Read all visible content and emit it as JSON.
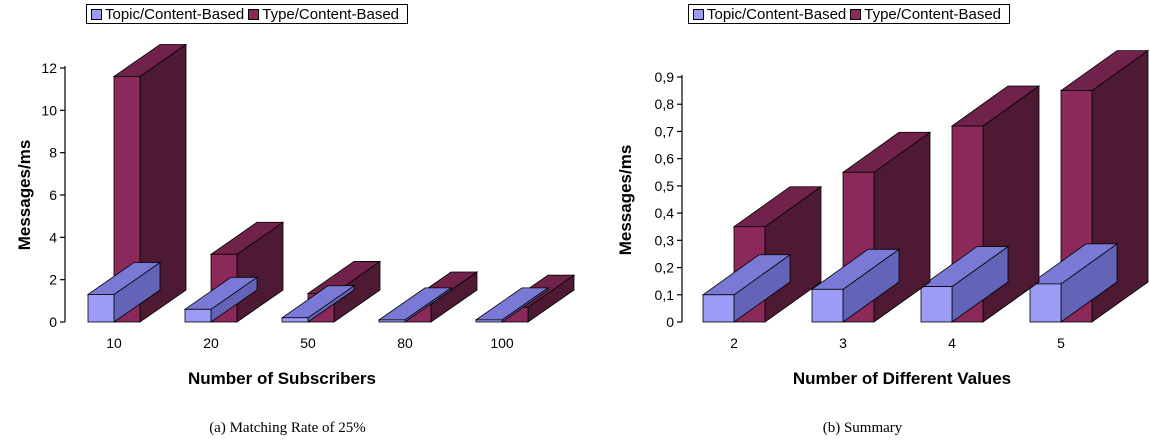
{
  "colors": {
    "series1_front": "#9c9cf6",
    "series1_top": "#7a7ad6",
    "series1_side": "#6363b8",
    "series2_front": "#8b2a5a",
    "series2_top": "#71224a",
    "series2_side": "#4e1a33"
  },
  "chart_data": [
    {
      "type": "bar",
      "categories": [
        "10",
        "20",
        "50",
        "80",
        "100"
      ],
      "series": [
        {
          "name": "Topic/Content-Based",
          "values": [
            1.3,
            0.6,
            0.2,
            0.1,
            0.1
          ]
        },
        {
          "name": "Type/Content-Based",
          "values": [
            11.6,
            3.2,
            1.35,
            0.85,
            0.7
          ]
        }
      ],
      "xlabel": "Number of Subscribers",
      "ylabel": "Messages/ms",
      "ylim": [
        0,
        12
      ],
      "yticks": [
        0,
        2,
        4,
        6,
        8,
        10,
        12
      ],
      "ytick_labels": [
        "0",
        "2",
        "4",
        "6",
        "8",
        "10",
        "12"
      ],
      "grid": false,
      "legend": "top",
      "style": "3d"
    },
    {
      "type": "bar",
      "categories": [
        "2",
        "3",
        "4",
        "5"
      ],
      "series": [
        {
          "name": "Topic/Content-Based",
          "values": [
            0.1,
            0.12,
            0.13,
            0.14
          ]
        },
        {
          "name": "Type/Content-Based",
          "values": [
            0.35,
            0.55,
            0.72,
            0.85
          ]
        }
      ],
      "xlabel": "Number of Different Values",
      "ylabel": "Messages/ms",
      "ylim": [
        0,
        0.9
      ],
      "yticks": [
        0,
        0.1,
        0.2,
        0.3,
        0.4,
        0.5,
        0.6,
        0.7,
        0.8,
        0.9
      ],
      "ytick_labels": [
        "0",
        "0,1",
        "0,2",
        "0,3",
        "0,4",
        "0,5",
        "0,6",
        "0,7",
        "0,8",
        "0,9"
      ],
      "grid": false,
      "legend": "top",
      "style": "3d"
    }
  ],
  "captions": [
    "(a) Matching Rate of 25%",
    "(b) Summary"
  ]
}
